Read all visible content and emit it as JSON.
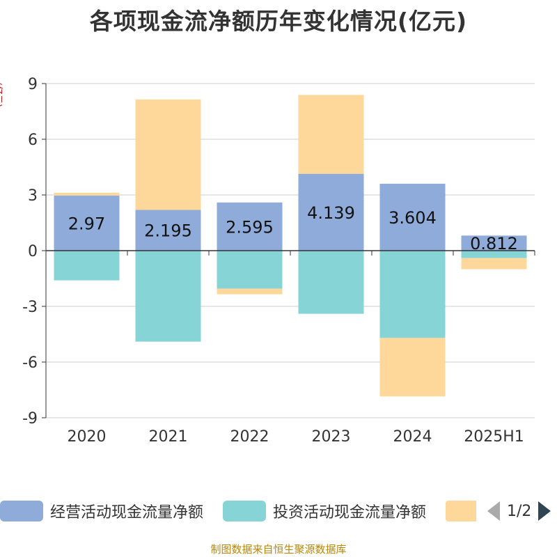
{
  "title": "各项现金流净额历年变化情况(亿元)",
  "unit": "(亿元)",
  "source": "制图数据来自恒生聚源数据库",
  "legend": {
    "items": [
      {
        "label": "经营活动现金流量净额",
        "color": "#8eabd9"
      },
      {
        "label": "投资活动现金流量净额",
        "color": "#87d4d6"
      },
      {
        "label": "",
        "color": "#fdd89a"
      }
    ],
    "pager": "1/2"
  },
  "chart_data": {
    "type": "bar",
    "stacked": true,
    "categories": [
      "2020",
      "2021",
      "2022",
      "2023",
      "2024",
      "2025H1"
    ],
    "ylim": [
      -9,
      9
    ],
    "yticks": [
      9,
      6,
      3,
      0,
      -3,
      -6,
      -9
    ],
    "ytick_labels": [
      "9",
      "6",
      "3",
      "0",
      "-3",
      "-6",
      "-9"
    ],
    "grid": true,
    "legend_position": "bottom",
    "series": [
      {
        "name": "经营活动现金流量净额",
        "color": "#8eabd9",
        "values": [
          2.97,
          2.195,
          2.595,
          4.139,
          3.604,
          0.812
        ],
        "labels": [
          "2.97",
          "2.195",
          "2.595",
          "4.139",
          "3.604",
          "0.812"
        ]
      },
      {
        "name": "投资活动现金流量净额",
        "color": "#87d4d6",
        "values": [
          -1.6,
          -4.9,
          -2.05,
          -3.4,
          -4.7,
          -0.4
        ]
      },
      {
        "color": "#fdd89a",
        "values": [
          0.15,
          5.95,
          -0.3,
          4.25,
          -3.15,
          -0.6
        ]
      }
    ]
  }
}
